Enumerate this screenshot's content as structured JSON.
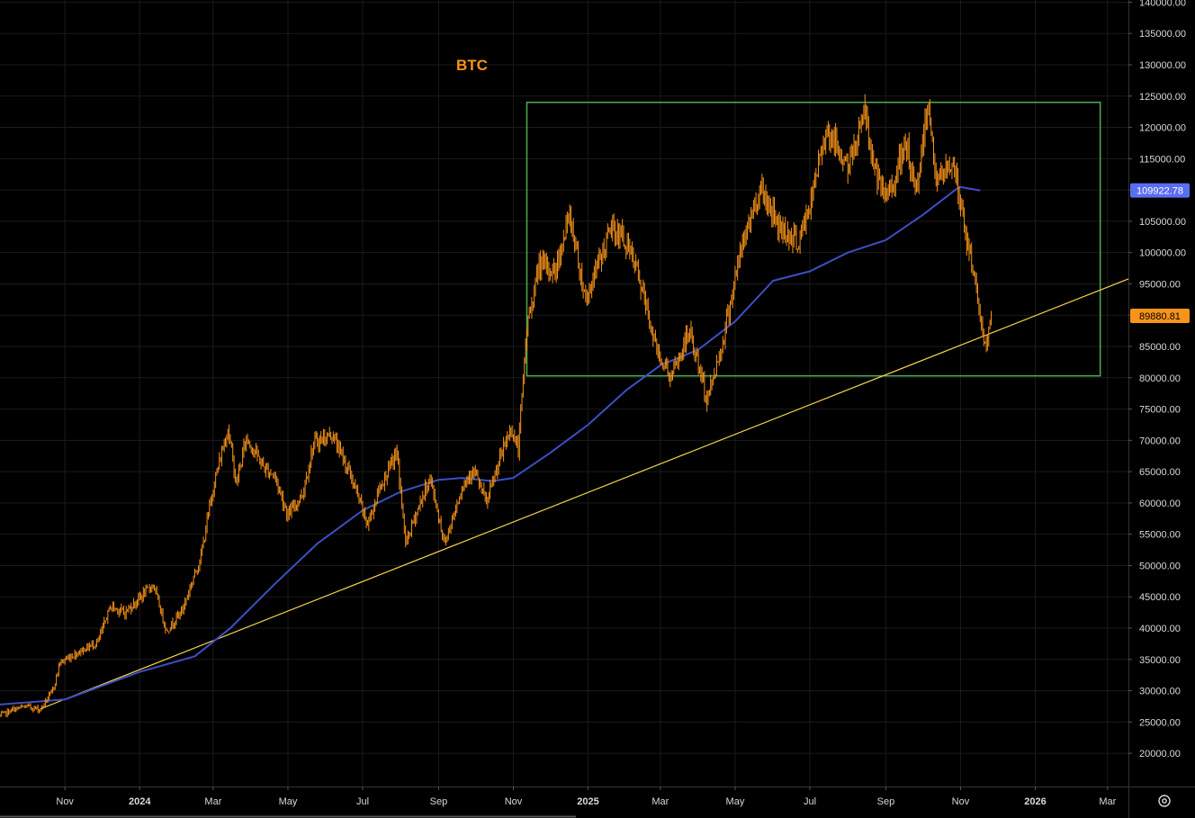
{
  "chart_data": {
    "type": "candlestick",
    "symbol": "BTC",
    "x_axis": {
      "ticks": [
        {
          "label": "Nov",
          "date": "2023-11-01"
        },
        {
          "label": "2024",
          "date": "2024-01-01",
          "bold": true
        },
        {
          "label": "Mar",
          "date": "2024-03-01"
        },
        {
          "label": "May",
          "date": "2024-05-01"
        },
        {
          "label": "Jul",
          "date": "2024-07-01"
        },
        {
          "label": "Sep",
          "date": "2024-09-01"
        },
        {
          "label": "Nov",
          "date": "2024-11-01"
        },
        {
          "label": "2025",
          "date": "2025-01-01",
          "bold": true
        },
        {
          "label": "Mar",
          "date": "2025-03-01"
        },
        {
          "label": "May",
          "date": "2025-05-01"
        },
        {
          "label": "Jul",
          "date": "2025-07-01"
        },
        {
          "label": "Sep",
          "date": "2025-09-01"
        },
        {
          "label": "Nov",
          "date": "2025-11-01"
        },
        {
          "label": "2026",
          "date": "2026-01-01",
          "bold": true
        },
        {
          "label": "Mar",
          "date": "2026-03-01"
        }
      ],
      "range": [
        "2023-09-09",
        "2026-03-18"
      ]
    },
    "y_axis": {
      "ticks": [
        "20000.00",
        "25000.00",
        "30000.00",
        "35000.00",
        "40000.00",
        "45000.00",
        "50000.00",
        "55000.00",
        "60000.00",
        "65000.00",
        "70000.00",
        "75000.00",
        "80000.00",
        "85000.00",
        "90000.00",
        "95000.00",
        "100000.00",
        "105000.00",
        "110000.00",
        "115000.00",
        "120000.00",
        "125000.00",
        "130000.00",
        "135000.00",
        "140000.00"
      ],
      "range": [
        14700,
        140350
      ],
      "grid": true
    },
    "price_labels": [
      {
        "text": "109922.78",
        "value": 109922.78,
        "color": "#5b6ef0"
      },
      {
        "text": "89880.81",
        "value": 89880.81,
        "color": "#f7931a"
      }
    ],
    "series": [
      {
        "kind": "price",
        "color": "#f7931a",
        "points": [
          [
            "2023-09-09",
            26000
          ],
          [
            "2023-09-20",
            27000
          ],
          [
            "2023-10-01",
            27500
          ],
          [
            "2023-10-12",
            27000
          ],
          [
            "2023-10-22",
            30000
          ],
          [
            "2023-10-28",
            34500
          ],
          [
            "2023-11-15",
            36500
          ],
          [
            "2023-11-28",
            37800
          ],
          [
            "2023-12-08",
            43500
          ],
          [
            "2023-12-20",
            42500
          ],
          [
            "2024-01-02",
            45000
          ],
          [
            "2024-01-12",
            47000
          ],
          [
            "2024-01-23",
            39500
          ],
          [
            "2024-02-05",
            43000
          ],
          [
            "2024-02-20",
            51500
          ],
          [
            "2024-03-01",
            62500
          ],
          [
            "2024-03-13",
            72000
          ],
          [
            "2024-03-20",
            63000
          ],
          [
            "2024-03-28",
            70500
          ],
          [
            "2024-04-12",
            65500
          ],
          [
            "2024-04-20",
            64500
          ],
          [
            "2024-05-01",
            58000
          ],
          [
            "2024-05-13",
            61500
          ],
          [
            "2024-05-22",
            69500
          ],
          [
            "2024-06-06",
            71000
          ],
          [
            "2024-06-20",
            65000
          ],
          [
            "2024-07-05",
            56500
          ],
          [
            "2024-07-15",
            62500
          ],
          [
            "2024-07-29",
            68000
          ],
          [
            "2024-08-05",
            53500
          ],
          [
            "2024-08-15",
            59000
          ],
          [
            "2024-08-25",
            64000
          ],
          [
            "2024-09-06",
            53500
          ],
          [
            "2024-09-20",
            62500
          ],
          [
            "2024-09-29",
            65500
          ],
          [
            "2024-10-10",
            60000
          ],
          [
            "2024-10-22",
            67500
          ],
          [
            "2024-10-30",
            72000
          ],
          [
            "2024-11-05",
            68500
          ],
          [
            "2024-11-12",
            88000
          ],
          [
            "2024-11-22",
            98000
          ],
          [
            "2024-12-05",
            97000
          ],
          [
            "2024-12-17",
            106000
          ],
          [
            "2024-12-30",
            92500
          ],
          [
            "2025-01-07",
            97000
          ],
          [
            "2025-01-20",
            104000
          ],
          [
            "2025-01-31",
            102000
          ],
          [
            "2025-02-10",
            97000
          ],
          [
            "2025-02-26",
            84500
          ],
          [
            "2025-03-10",
            80000
          ],
          [
            "2025-03-25",
            87500
          ],
          [
            "2025-04-08",
            76500
          ],
          [
            "2025-04-20",
            85000
          ],
          [
            "2025-05-02",
            97000
          ],
          [
            "2025-05-10",
            103500
          ],
          [
            "2025-05-22",
            110500
          ],
          [
            "2025-06-05",
            104500
          ],
          [
            "2025-06-22",
            101500
          ],
          [
            "2025-07-03",
            109000
          ],
          [
            "2025-07-14",
            120000
          ],
          [
            "2025-08-02",
            113500
          ],
          [
            "2025-08-14",
            123000
          ],
          [
            "2025-08-25",
            111500
          ],
          [
            "2025-09-01",
            108500
          ],
          [
            "2025-09-18",
            117000
          ],
          [
            "2025-09-25",
            109000
          ],
          [
            "2025-10-06",
            124500
          ],
          [
            "2025-10-12",
            111000
          ],
          [
            "2025-10-26",
            114500
          ],
          [
            "2025-11-04",
            104000
          ],
          [
            "2025-11-14",
            94500
          ],
          [
            "2025-11-21",
            84500
          ],
          [
            "2025-11-26",
            89880.81
          ]
        ]
      },
      {
        "kind": "moving_average",
        "color": "#3d4fc4",
        "points": [
          [
            "2023-09-09",
            27800
          ],
          [
            "2023-11-01",
            28600
          ],
          [
            "2024-01-01",
            33000
          ],
          [
            "2024-02-15",
            35500
          ],
          [
            "2024-03-15",
            40000
          ],
          [
            "2024-04-20",
            47000
          ],
          [
            "2024-05-25",
            53500
          ],
          [
            "2024-07-01",
            58800
          ],
          [
            "2024-08-01",
            61800
          ],
          [
            "2024-09-01",
            63700
          ],
          [
            "2024-09-20",
            64000
          ],
          [
            "2024-10-15",
            63500
          ],
          [
            "2024-11-01",
            64000
          ],
          [
            "2024-12-01",
            68000
          ],
          [
            "2025-01-01",
            72500
          ],
          [
            "2025-02-01",
            78000
          ],
          [
            "2025-03-01",
            82000
          ],
          [
            "2025-04-01",
            84500
          ],
          [
            "2025-05-01",
            89000
          ],
          [
            "2025-06-01",
            95500
          ],
          [
            "2025-07-01",
            97000
          ],
          [
            "2025-08-01",
            100000
          ],
          [
            "2025-09-01",
            102000
          ],
          [
            "2025-10-01",
            106000
          ],
          [
            "2025-10-31",
            110500
          ],
          [
            "2025-11-17",
            109922.78
          ]
        ]
      }
    ],
    "annotations": [
      {
        "type": "rectangle",
        "color": "#4caf50",
        "from": [
          "2024-11-12",
          124000
        ],
        "to": [
          "2026-02-23",
          80300
        ]
      },
      {
        "type": "trend_line",
        "color": "#f5d547",
        "from": [
          "2023-10-12",
          27100
        ],
        "to": [
          "2026-03-18",
          95800
        ]
      }
    ]
  },
  "icons": {
    "settings": "gear-icon"
  }
}
